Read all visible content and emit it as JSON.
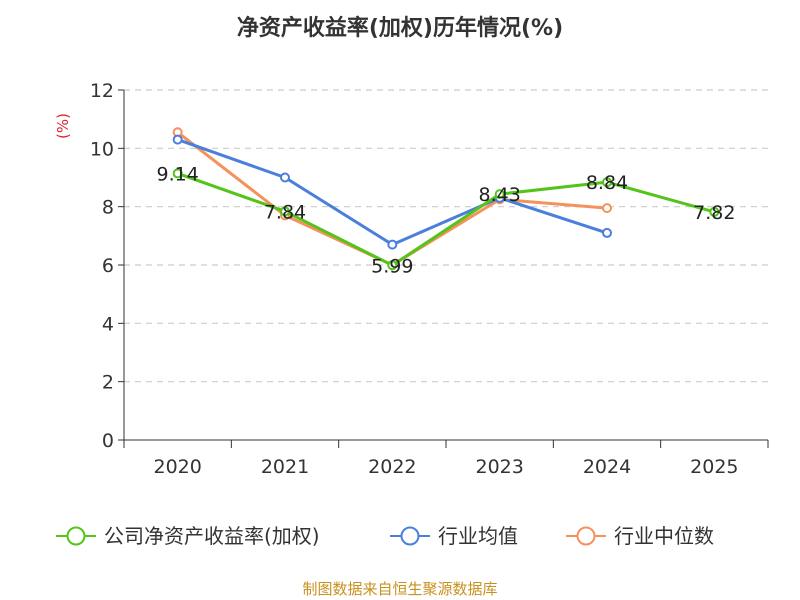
{
  "chart_data": {
    "type": "line",
    "title": "净资产收益率(加权)历年情况(%)",
    "ylabel": "(%)",
    "xlabel": "",
    "ylim": [
      0,
      12
    ],
    "yticks": [
      0,
      2,
      4,
      6,
      8,
      10,
      12
    ],
    "categories": [
      "2020",
      "2021",
      "2022",
      "2023",
      "2024",
      "2025"
    ],
    "grid": true,
    "legend_position": "bottom",
    "series": [
      {
        "name": "公司净资产收益率(加权)",
        "color": "#52c41a",
        "values": [
          9.14,
          7.84,
          5.99,
          8.43,
          8.84,
          7.82
        ],
        "labels": [
          "9.14",
          "7.84",
          "5.99",
          "8.43",
          "8.84",
          "7.82"
        ]
      },
      {
        "name": "行业均值",
        "color": "#4a7fdc",
        "values": [
          10.3,
          9.0,
          6.7,
          8.3,
          7.1,
          null
        ]
      },
      {
        "name": "行业中位数",
        "color": "#f5915a",
        "values": [
          10.55,
          7.7,
          6.0,
          8.25,
          7.95,
          null
        ]
      }
    ],
    "source": "制图数据来自恒生聚源数据库",
    "unit_color": "#e0252b",
    "source_color": "#c8901e"
  }
}
